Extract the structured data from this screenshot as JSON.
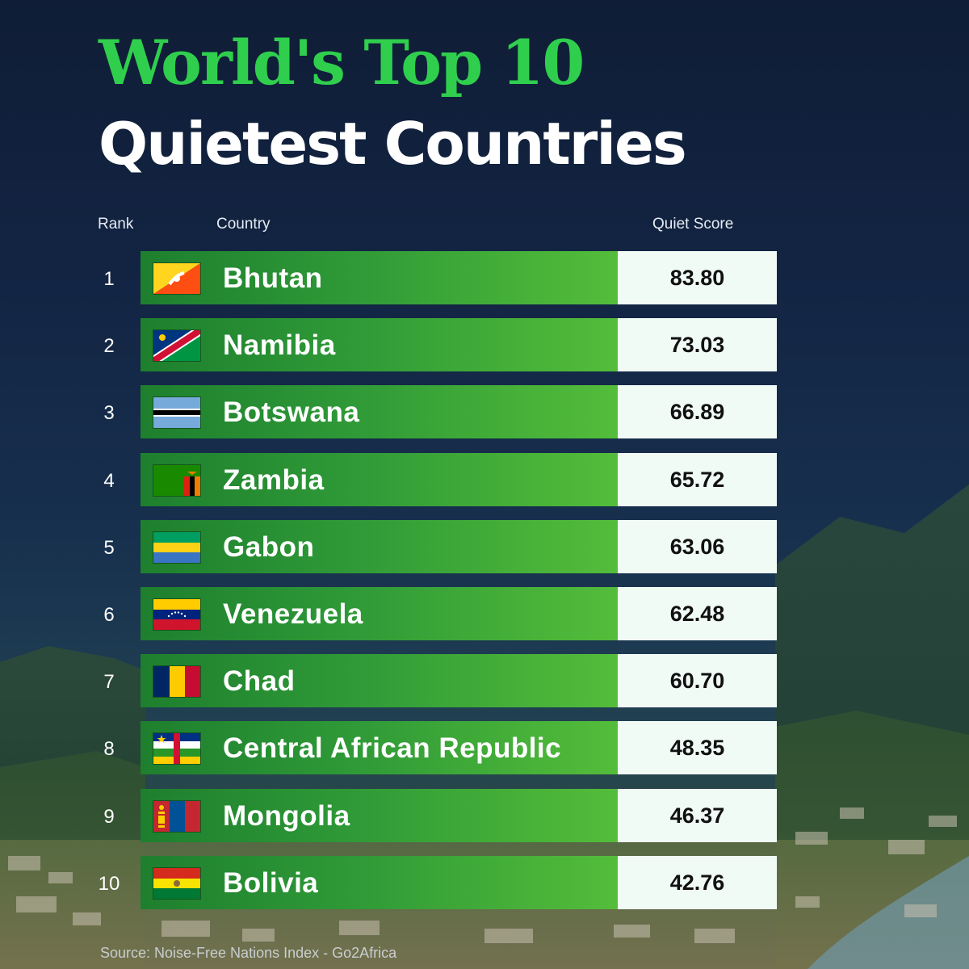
{
  "title_line1": "World's Top 10",
  "title_line2": "Quietest Countries",
  "columns": {
    "rank": "Rank",
    "country": "Country",
    "score": "Quiet Score"
  },
  "source": "Source: Noise-Free Nations Index -  Go2Africa",
  "colors": {
    "title_green": "#2fcf4d",
    "bar_green_dark": "#1e7f2e",
    "bar_green_light": "#54bd3a",
    "score_bg": "#f1fbf6"
  },
  "chart_data": {
    "type": "table",
    "title": "World's Top 10 Quietest Countries",
    "columns": [
      "Rank",
      "Country",
      "Quiet Score"
    ],
    "rows": [
      {
        "rank": "1",
        "country": "Bhutan",
        "score": "83.80",
        "flag": "bhutan-flag-icon"
      },
      {
        "rank": "2",
        "country": "Namibia",
        "score": "73.03",
        "flag": "namibia-flag-icon"
      },
      {
        "rank": "3",
        "country": "Botswana",
        "score": "66.89",
        "flag": "botswana-flag-icon"
      },
      {
        "rank": "4",
        "country": "Zambia",
        "score": "65.72",
        "flag": "zambia-flag-icon"
      },
      {
        "rank": "5",
        "country": "Gabon",
        "score": "63.06",
        "flag": "gabon-flag-icon"
      },
      {
        "rank": "6",
        "country": "Venezuela",
        "score": "62.48",
        "flag": "venezuela-flag-icon"
      },
      {
        "rank": "7",
        "country": "Chad",
        "score": "60.70",
        "flag": "chad-flag-icon"
      },
      {
        "rank": "8",
        "country": "Central African Republic",
        "score": "48.35",
        "flag": "central-african-republic-flag-icon"
      },
      {
        "rank": "9",
        "country": "Mongolia",
        "score": "46.37",
        "flag": "mongolia-flag-icon"
      },
      {
        "rank": "10",
        "country": "Bolivia",
        "score": "42.76",
        "flag": "bolivia-flag-icon"
      }
    ]
  }
}
